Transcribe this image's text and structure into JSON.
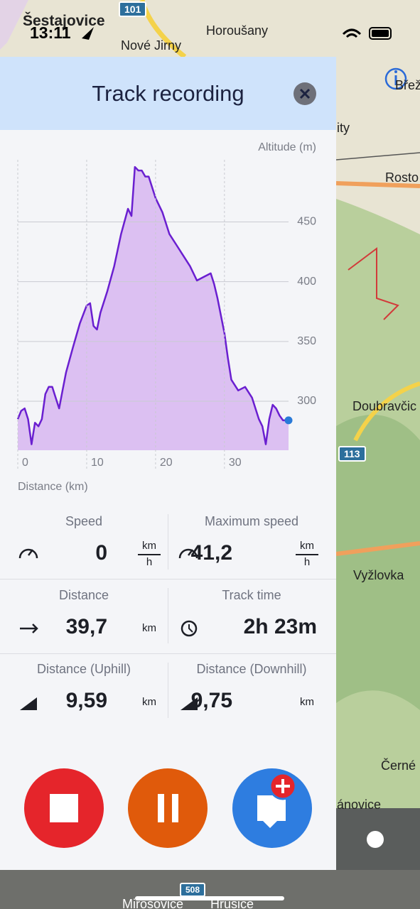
{
  "status": {
    "time": "13:11"
  },
  "map": {
    "labels": [
      "Šestajovice",
      "101",
      "Nové Jirny",
      "Horoušany",
      "Břež",
      "ity",
      "Rosto",
      "Doubravčic",
      "113",
      "Vyžlovka",
      "Černé",
      "ánovice",
      "508",
      "Mirošovice",
      "Hrusice"
    ]
  },
  "panel": {
    "title": "Track recording"
  },
  "chart_data": {
    "type": "area",
    "y_label": "Altitude (m)",
    "x_label": "Distance (km)",
    "color": "#6a1fd0",
    "fill_color": "#dcc0f2",
    "grid": true,
    "x": [
      0,
      0.5,
      1,
      1.5,
      2,
      2.5,
      3,
      3.5,
      4,
      4.5,
      5,
      5.5,
      6,
      6.5,
      7,
      8,
      9,
      10,
      10.5,
      11,
      11.5,
      12,
      13,
      14,
      15,
      16,
      16.5,
      17,
      17.5,
      18,
      18.5,
      19,
      20,
      21,
      22,
      23,
      24,
      25,
      26,
      27,
      28,
      28.5,
      29,
      30,
      30.5,
      31,
      32,
      33,
      34,
      35,
      35.5,
      36,
      36.5,
      37,
      37.5,
      38,
      38.5,
      39.3
    ],
    "values": [
      285,
      292,
      294,
      285,
      264,
      282,
      279,
      285,
      306,
      312,
      312,
      303,
      294,
      309,
      324,
      345,
      365,
      380,
      382,
      363,
      360,
      374,
      392,
      413,
      440,
      461,
      455,
      496,
      493,
      493,
      488,
      488,
      470,
      458,
      440,
      431,
      422,
      413,
      401,
      404,
      407,
      398,
      386,
      357,
      336,
      318,
      309,
      312,
      303,
      285,
      279,
      264,
      285,
      297,
      294,
      288,
      284,
      284
    ],
    "xlim": [
      0,
      39.3
    ],
    "ylim": [
      259,
      502
    ],
    "xticks": [
      0,
      10,
      20,
      30
    ],
    "yticks": [
      300,
      350,
      400,
      450
    ]
  },
  "stats": [
    {
      "label": "Speed",
      "value": "0",
      "unit": "km",
      "unit_denominator": "h"
    },
    {
      "label": "Maximum speed",
      "value": "41,2",
      "unit": "km",
      "unit_denominator": "h"
    },
    {
      "label": "Distance",
      "value": "39,7",
      "unit": "km"
    },
    {
      "label": "Track time",
      "value": "2h 23m"
    },
    {
      "label": "Distance (Uphill)",
      "value": "9,59",
      "unit": "km"
    },
    {
      "label": "Distance (Downhill)",
      "value": "9,75",
      "unit": "km"
    }
  ]
}
